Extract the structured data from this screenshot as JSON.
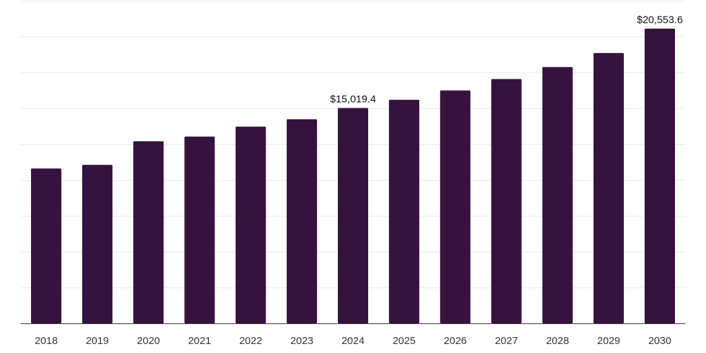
{
  "chart_data": {
    "type": "bar",
    "categories": [
      "2018",
      "2019",
      "2020",
      "2021",
      "2022",
      "2023",
      "2024",
      "2025",
      "2026",
      "2027",
      "2028",
      "2029",
      "2030"
    ],
    "values": [
      10800,
      11050,
      12700,
      13020,
      13720,
      14230,
      15019.4,
      15590,
      16240,
      17040,
      17870,
      18850,
      20553.6
    ],
    "data_labels": [
      {
        "category": "2024",
        "text": "$15,019.4"
      },
      {
        "category": "2030",
        "text": "$20,553.6"
      }
    ],
    "bar_color": "#36133f",
    "ylim": [
      0,
      22500
    ],
    "ytick_step": 2500,
    "grid": true,
    "title": "",
    "xlabel": "",
    "ylabel": ""
  }
}
